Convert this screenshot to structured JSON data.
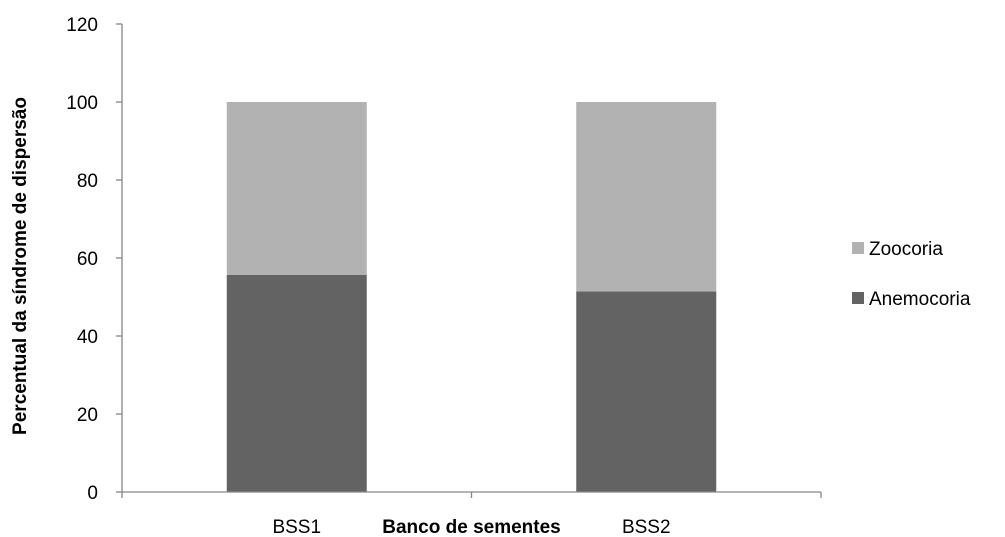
{
  "chart_data": {
    "type": "bar",
    "stacked": true,
    "categories": [
      "BSS1",
      "BSS2"
    ],
    "series": [
      {
        "name": "Anemocoria",
        "values": [
          55.7,
          51.4
        ],
        "color": "#636363"
      },
      {
        "name": "Zoocoria",
        "values": [
          44.3,
          48.6
        ],
        "color": "#b2b2b2"
      }
    ],
    "xlabel": "Banco de sementes",
    "ylabel": "Percentual da síndrome de dispersão",
    "ylim": [
      0,
      120
    ],
    "yticks": [
      0,
      20,
      40,
      60,
      80,
      100,
      120
    ],
    "grid": false,
    "legend_position": "right",
    "legend_order": [
      "Zoocoria",
      "Anemocoria"
    ]
  }
}
